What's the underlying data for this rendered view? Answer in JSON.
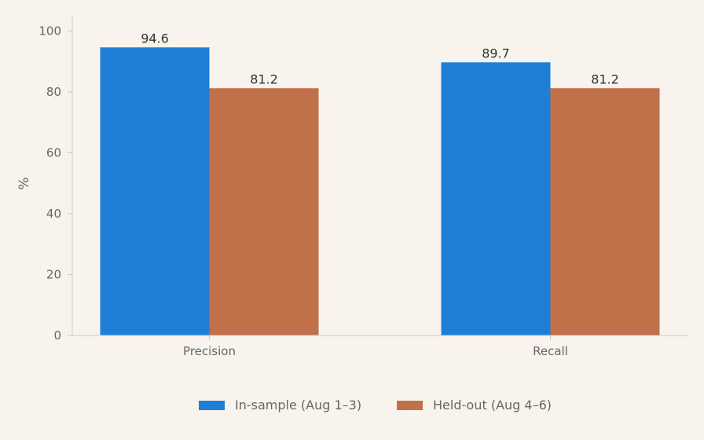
{
  "chart_data": {
    "type": "bar",
    "categories": [
      "Precision",
      "Recall"
    ],
    "series": [
      {
        "name": "In-sample (Aug 1–3)",
        "values": [
          94.6,
          89.7
        ],
        "color": "#1f7fd7"
      },
      {
        "name": "Held-out (Aug 4–6)",
        "values": [
          81.2,
          81.2
        ],
        "color": "#c1714a"
      }
    ],
    "ylabel": "%",
    "ylim": [
      0,
      105
    ],
    "yticks": [
      0,
      20,
      40,
      60,
      80,
      100
    ],
    "grid": false,
    "legend": "bottom-center"
  }
}
